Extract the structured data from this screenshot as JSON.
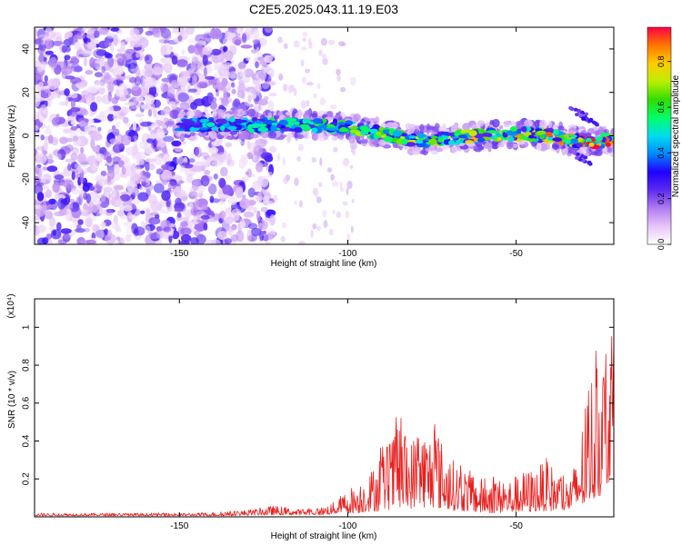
{
  "page": {
    "title": "C2E5.2025.043.11.19.E03"
  },
  "chart_data": [
    {
      "type": "heatmap",
      "title": "C2E5.2025.043.11.19.E03",
      "xlabel": "Height of straight line (km)",
      "ylabel": "Frequency (Hz)",
      "xlim": [
        -193,
        -21
      ],
      "ylim": [
        -50,
        50
      ],
      "x_ticks": [
        -150,
        -100,
        -50
      ],
      "x_tick_labels": [
        "-150",
        "-100",
        "-50"
      ],
      "y_ticks": [
        -40,
        -20,
        0,
        20,
        40
      ],
      "y_tick_labels": [
        "-40",
        "-20",
        "0",
        "20",
        "40"
      ],
      "colorbar": {
        "label": "Normalized spectral amplitude",
        "range": [
          0,
          0.95
        ],
        "ticks": [
          0,
          0.2,
          0.4,
          0.6,
          0.8
        ],
        "tick_labels": [
          "0.0",
          "0.2",
          "0.4",
          "0.6",
          "0.8"
        ],
        "colormap": [
          "#ffffff",
          "#e6c6f7",
          "#b07cf0",
          "#5a2bf0",
          "#2200ff",
          "#0088ff",
          "#00ddee",
          "#00ff66",
          "#33dd00",
          "#bbee00",
          "#ffcc00",
          "#ff7700",
          "#ff0044"
        ]
      },
      "signal_ridge": {
        "x": [
          -130,
          -120,
          -110,
          -100,
          -90,
          -80,
          -70,
          -60,
          -50,
          -40,
          -30,
          -21
        ],
        "frequency": [
          5,
          5,
          5,
          4,
          1,
          -2,
          -1,
          0,
          1,
          0,
          -3,
          -2
        ]
      },
      "noise_region": {
        "x_range": [
          -193,
          -128
        ],
        "frequency_range": [
          -50,
          50
        ]
      },
      "grid": false
    },
    {
      "type": "line",
      "xlabel": "Height of straight line (km)",
      "ylabel": "SNR (10 * v/v)",
      "y_multiplier": "(x10⁴)",
      "y_multiplier_base": "(x10",
      "y_multiplier_exp": "4",
      "xlim": [
        -193,
        -21
      ],
      "ylim": [
        0,
        1.15
      ],
      "x_ticks": [
        -150,
        -100,
        -50
      ],
      "x_tick_labels": [
        "-150",
        "-100",
        "-50"
      ],
      "y_ticks": [
        0.2,
        0.4,
        0.6,
        0.8,
        1
      ],
      "y_tick_labels": [
        "0.2",
        "0.4",
        "0.6",
        "0.8",
        "1"
      ],
      "color": "#e8201f",
      "series": [
        {
          "x": [
            -193,
            -185,
            -175,
            -165,
            -155,
            -145,
            -135,
            -128,
            -122,
            -115,
            -108,
            -104,
            -100,
            -97,
            -93,
            -90,
            -87,
            -85,
            -82,
            -80,
            -78,
            -76,
            -74,
            -72,
            -70,
            -67,
            -64,
            -61,
            -58,
            -55,
            -52,
            -50,
            -47,
            -44,
            -41,
            -38,
            -35,
            -32,
            -30,
            -28,
            -26,
            -24,
            -22,
            -21
          ],
          "envelope": [
            0.02,
            0.02,
            0.02,
            0.02,
            0.02,
            0.02,
            0.03,
            0.04,
            0.06,
            0.04,
            0.05,
            0.08,
            0.15,
            0.18,
            0.25,
            0.38,
            0.4,
            0.58,
            0.38,
            0.45,
            0.5,
            0.44,
            0.53,
            0.4,
            0.32,
            0.28,
            0.25,
            0.2,
            0.22,
            0.2,
            0.2,
            0.22,
            0.25,
            0.26,
            0.31,
            0.25,
            0.2,
            0.3,
            0.55,
            0.75,
            0.9,
            0.85,
            1.12,
            1.05
          ],
          "floor": [
            0.005,
            0.005,
            0.005,
            0.005,
            0.005,
            0.005,
            0.005,
            0.008,
            0.01,
            0.01,
            0.01,
            0.015,
            0.02,
            0.02,
            0.03,
            0.03,
            0.04,
            0.04,
            0.04,
            0.05,
            0.05,
            0.05,
            0.05,
            0.04,
            0.04,
            0.03,
            0.03,
            0.02,
            0.02,
            0.02,
            0.02,
            0.02,
            0.02,
            0.03,
            0.03,
            0.03,
            0.03,
            0.04,
            0.05,
            0.08,
            0.1,
            0.12,
            0.2,
            0.25
          ]
        }
      ],
      "grid": false
    }
  ]
}
